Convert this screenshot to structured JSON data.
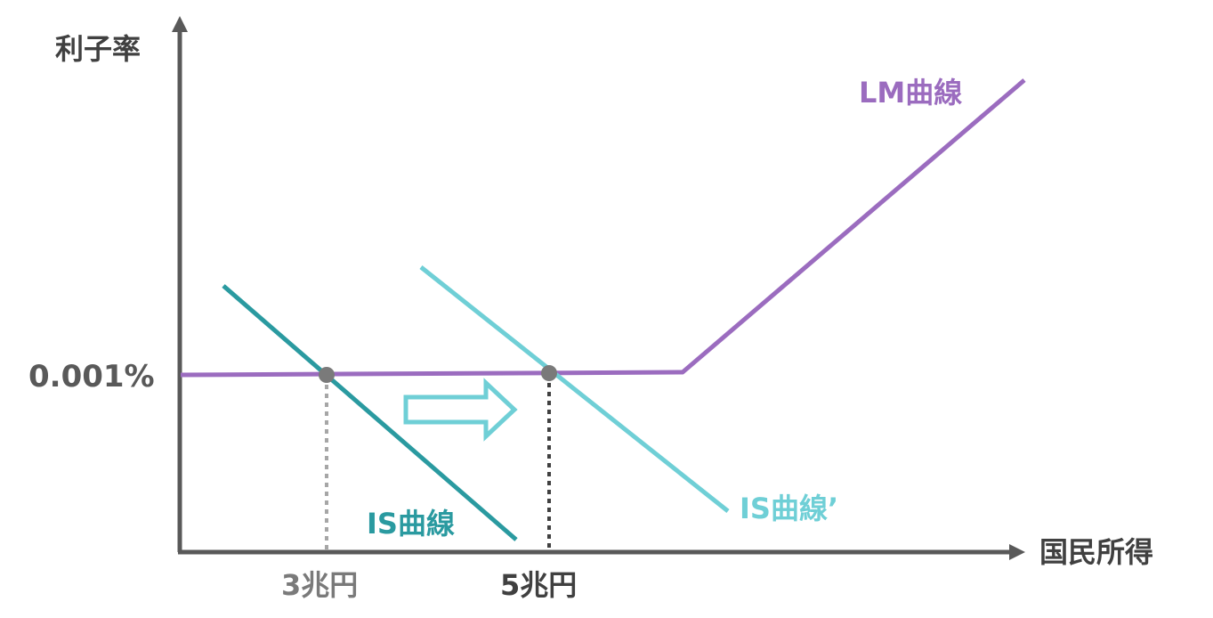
{
  "diagram": {
    "y_axis_label": "利子率",
    "x_axis_label": "国民所得",
    "interest_rate_label": "0.001%",
    "income_before_label": "3兆円",
    "income_after_label": "5兆円",
    "lm_curve_label": "LM曲線",
    "is_curve_label": "IS曲線",
    "is_curve_shifted_label": "IS曲線’",
    "colors": {
      "axis": "#595959",
      "lm": "#9b6cbf",
      "is": "#2a9aa0",
      "is_shifted": "#6fcfd6",
      "point": "#7a7a7a",
      "guide_light": "#a6a6a6",
      "guide_dark": "#404040",
      "label_gray": "#7a7a7a",
      "label_dark": "#404040"
    }
  }
}
